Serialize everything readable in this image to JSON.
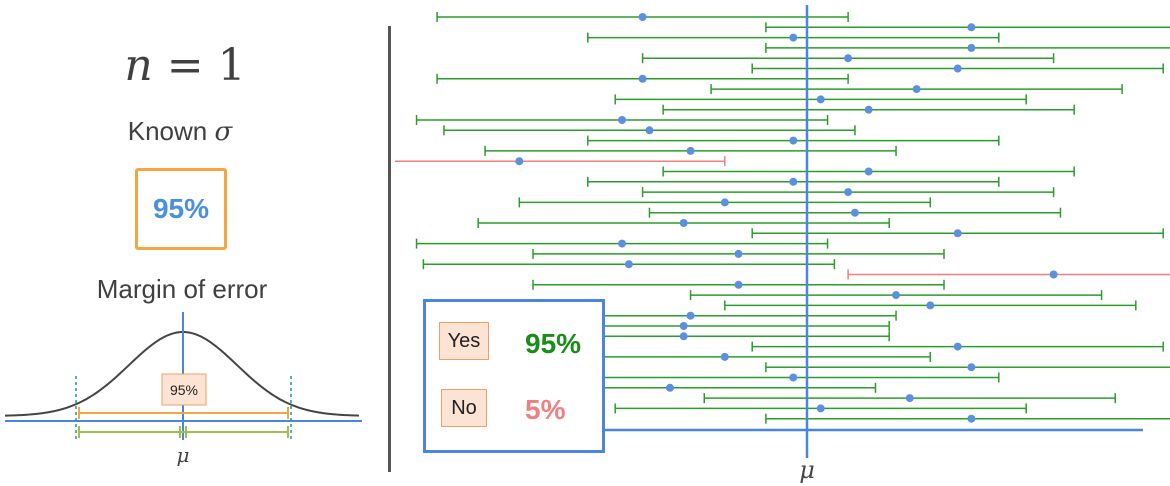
{
  "sample_size": {
    "variable": "n",
    "equals": "=",
    "value": "1"
  },
  "known_sigma": {
    "text": "Known",
    "symbol": "σ"
  },
  "confidence_level": "95%",
  "margin_of_error_label": "Margin of error",
  "bell_curve": {
    "inner_label": "95%",
    "mean_symbol": "μ"
  },
  "intervals_axis_label": "μ",
  "legend": {
    "yes_label": "Yes",
    "yes_value": "95%",
    "no_label": "No",
    "no_value": "5%"
  },
  "colors": {
    "hit": "#2a9d2a",
    "miss": "#f08080",
    "point": "#5b8fe0",
    "mean_line": "#4a86e0",
    "box_border": "#f5a640",
    "legend_border": "#4a86e0"
  },
  "chart_data": {
    "type": "interval",
    "true_mean": 0,
    "intervals": [
      {
        "center": -1.2,
        "low": -2.7,
        "high": 0.3,
        "covers": true
      },
      {
        "center": 1.2,
        "low": -0.3,
        "high": 2.7,
        "covers": true
      },
      {
        "center": -0.1,
        "low": -1.6,
        "high": 1.4,
        "covers": true
      },
      {
        "center": 1.2,
        "low": -0.3,
        "high": 2.7,
        "covers": true
      },
      {
        "center": 0.3,
        "low": -1.2,
        "high": 1.8,
        "covers": true
      },
      {
        "center": 1.1,
        "low": -0.4,
        "high": 2.6,
        "covers": true
      },
      {
        "center": -1.2,
        "low": -2.7,
        "high": 0.3,
        "covers": true
      },
      {
        "center": 0.8,
        "low": -0.7,
        "high": 2.3,
        "covers": true
      },
      {
        "center": 0.1,
        "low": -1.4,
        "high": 1.6,
        "covers": true
      },
      {
        "center": 0.45,
        "low": -1.05,
        "high": 1.95,
        "covers": true
      },
      {
        "center": -1.35,
        "low": -2.85,
        "high": 0.15,
        "covers": true
      },
      {
        "center": -1.15,
        "low": -2.65,
        "high": 0.35,
        "covers": true
      },
      {
        "center": -0.1,
        "low": -1.6,
        "high": 1.4,
        "covers": true
      },
      {
        "center": -0.85,
        "low": -2.35,
        "high": 0.65,
        "covers": true
      },
      {
        "center": -2.1,
        "low": -3.6,
        "high": -0.6,
        "covers": false
      },
      {
        "center": 0.45,
        "low": -1.05,
        "high": 1.95,
        "covers": true
      },
      {
        "center": -0.1,
        "low": -1.6,
        "high": 1.4,
        "covers": true
      },
      {
        "center": 0.3,
        "low": -1.2,
        "high": 1.8,
        "covers": true
      },
      {
        "center": -0.6,
        "low": -2.1,
        "high": 0.9,
        "covers": true
      },
      {
        "center": 0.35,
        "low": -1.15,
        "high": 1.85,
        "covers": true
      },
      {
        "center": -0.9,
        "low": -2.4,
        "high": 0.6,
        "covers": true
      },
      {
        "center": 1.1,
        "low": -0.4,
        "high": 2.6,
        "covers": true
      },
      {
        "center": -1.35,
        "low": -2.85,
        "high": 0.15,
        "covers": true
      },
      {
        "center": -0.5,
        "low": -2.0,
        "high": 1.0,
        "covers": true
      },
      {
        "center": -1.3,
        "low": -2.8,
        "high": 0.2,
        "covers": true
      },
      {
        "center": 1.8,
        "low": 0.3,
        "high": 3.3,
        "covers": false
      },
      {
        "center": -0.5,
        "low": -2.0,
        "high": 1.0,
        "covers": true
      },
      {
        "center": 0.65,
        "low": -0.85,
        "high": 2.15,
        "covers": true
      },
      {
        "center": 0.9,
        "low": -0.6,
        "high": 2.4,
        "covers": true
      },
      {
        "center": -0.85,
        "low": -2.35,
        "high": 0.65,
        "covers": true
      },
      {
        "center": -0.9,
        "low": -2.4,
        "high": 0.6,
        "covers": true
      },
      {
        "center": -0.9,
        "low": -2.4,
        "high": 0.6,
        "covers": true
      },
      {
        "center": 1.1,
        "low": -0.4,
        "high": 2.6,
        "covers": true
      },
      {
        "center": -0.6,
        "low": -2.1,
        "high": 0.9,
        "covers": true
      },
      {
        "center": 1.2,
        "low": -0.3,
        "high": 2.7,
        "covers": true
      },
      {
        "center": -0.1,
        "low": -1.6,
        "high": 1.4,
        "covers": true
      },
      {
        "center": -1.0,
        "low": -2.5,
        "high": 0.5,
        "covers": true
      },
      {
        "center": 0.75,
        "low": -0.75,
        "high": 2.25,
        "covers": true
      },
      {
        "center": 0.1,
        "low": -1.4,
        "high": 1.6,
        "covers": true
      },
      {
        "center": 1.2,
        "low": -0.3,
        "high": 2.7,
        "covers": true
      }
    ]
  }
}
